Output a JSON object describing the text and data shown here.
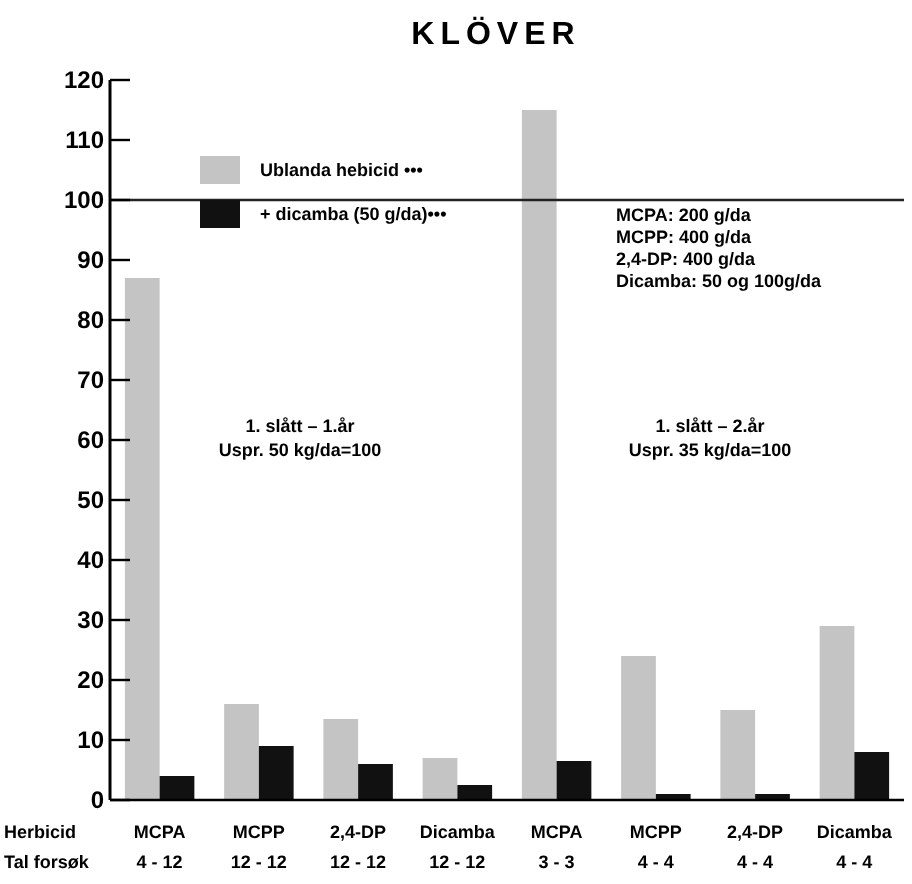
{
  "chart_data": {
    "type": "bar",
    "title": "KLÖVER",
    "categories": [
      "MCPA\n4 - 12",
      "MCPP\n12 - 12",
      "2,4-DP\n12 - 12",
      "Dicamba\n12 - 12",
      "MCPA\n3 - 3",
      "MCPP\n4 - 4",
      "2,4-DP\n4 - 4",
      "Dicamba\n4 - 4"
    ],
    "series": [
      {
        "name": "Ublanda hebicid •••",
        "color": "#c4c4c4",
        "values": [
          87,
          16,
          13.5,
          7,
          115,
          24,
          15,
          29
        ]
      },
      {
        "name": "+ dicamba (50 g/da)•••",
        "color": "#111111",
        "values": [
          4,
          9,
          6,
          2.5,
          6.5,
          1,
          1,
          8
        ]
      }
    ],
    "ylim": [
      0,
      120
    ],
    "yticks": [
      0,
      10,
      20,
      30,
      40,
      50,
      60,
      70,
      80,
      90,
      100,
      110,
      120
    ],
    "ref_lines": [
      {
        "axis": "y",
        "value": 100,
        "color": "#222222"
      }
    ],
    "legend": "top left",
    "annotations": [
      "Herbicid\nTal forsøk",
      "1. slått – 1.år\nUspr. 50 kg/da=100",
      "1. slått – 2.år\nUspr. 35 kg/da=100",
      "MCPA: 200 g/da\nMCPP: 400 g/da\n2,4-DP: 400 g/da\nDicamba: 50 og 100g/da"
    ]
  }
}
